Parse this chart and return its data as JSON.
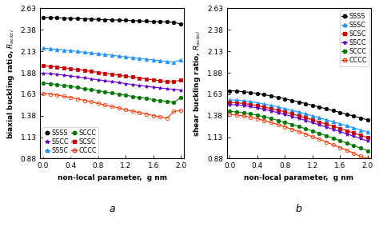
{
  "x": [
    0.0,
    0.1,
    0.2,
    0.3,
    0.4,
    0.5,
    0.6,
    0.7,
    0.8,
    0.9,
    1.0,
    1.1,
    1.2,
    1.3,
    1.4,
    1.5,
    1.6,
    1.7,
    1.8,
    1.9,
    2.0
  ],
  "biaxial": {
    "SSSS": [
      2.525,
      2.523,
      2.52,
      2.517,
      2.514,
      2.511,
      2.508,
      2.505,
      2.502,
      2.499,
      2.496,
      2.493,
      2.49,
      2.487,
      2.484,
      2.481,
      2.478,
      2.475,
      2.472,
      2.469,
      2.446
    ],
    "SSSC": [
      2.165,
      2.16,
      2.153,
      2.145,
      2.137,
      2.128,
      2.119,
      2.11,
      2.101,
      2.092,
      2.083,
      2.074,
      2.065,
      2.056,
      2.047,
      2.038,
      2.029,
      2.02,
      2.011,
      2.002,
      2.03
    ],
    "SCSC": [
      1.96,
      1.955,
      1.947,
      1.938,
      1.928,
      1.917,
      1.906,
      1.895,
      1.884,
      1.873,
      1.862,
      1.851,
      1.84,
      1.829,
      1.819,
      1.808,
      1.798,
      1.788,
      1.778,
      1.778,
      1.793
    ],
    "SSCC": [
      1.875,
      1.87,
      1.862,
      1.852,
      1.842,
      1.831,
      1.82,
      1.809,
      1.798,
      1.787,
      1.776,
      1.765,
      1.754,
      1.743,
      1.733,
      1.722,
      1.712,
      1.703,
      1.694,
      1.686,
      1.678
    ],
    "SCCC": [
      1.76,
      1.753,
      1.744,
      1.733,
      1.721,
      1.709,
      1.696,
      1.683,
      1.67,
      1.657,
      1.644,
      1.631,
      1.618,
      1.605,
      1.593,
      1.58,
      1.568,
      1.556,
      1.545,
      1.535,
      1.59
    ],
    "CCCC": [
      1.64,
      1.632,
      1.621,
      1.607,
      1.592,
      1.576,
      1.559,
      1.541,
      1.523,
      1.505,
      1.487,
      1.469,
      1.451,
      1.433,
      1.416,
      1.399,
      1.382,
      1.366,
      1.35,
      1.43,
      1.44
    ]
  },
  "shear": {
    "SSSS": [
      1.67,
      1.666,
      1.659,
      1.65,
      1.638,
      1.625,
      1.61,
      1.594,
      1.577,
      1.559,
      1.54,
      1.521,
      1.501,
      1.481,
      1.46,
      1.439,
      1.418,
      1.397,
      1.376,
      1.354,
      1.332
    ],
    "SSSC": [
      1.565,
      1.561,
      1.554,
      1.544,
      1.531,
      1.516,
      1.5,
      1.482,
      1.463,
      1.443,
      1.422,
      1.401,
      1.379,
      1.356,
      1.333,
      1.31,
      1.286,
      1.262,
      1.238,
      1.214,
      1.189
    ],
    "SCSC": [
      1.535,
      1.53,
      1.522,
      1.511,
      1.497,
      1.481,
      1.463,
      1.444,
      1.423,
      1.402,
      1.379,
      1.356,
      1.332,
      1.307,
      1.282,
      1.257,
      1.231,
      1.205,
      1.178,
      1.151,
      1.124
    ],
    "SSCC": [
      1.51,
      1.505,
      1.497,
      1.485,
      1.47,
      1.454,
      1.435,
      1.415,
      1.394,
      1.372,
      1.348,
      1.324,
      1.299,
      1.274,
      1.248,
      1.222,
      1.195,
      1.168,
      1.141,
      1.113,
      1.085
    ],
    "SCCC": [
      1.43,
      1.424,
      1.414,
      1.401,
      1.385,
      1.367,
      1.347,
      1.326,
      1.303,
      1.279,
      1.254,
      1.228,
      1.202,
      1.175,
      1.147,
      1.119,
      1.09,
      1.061,
      1.032,
      1.002,
      0.972
    ],
    "CCCC": [
      1.395,
      1.388,
      1.377,
      1.362,
      1.344,
      1.323,
      1.3,
      1.276,
      1.25,
      1.223,
      1.195,
      1.166,
      1.136,
      1.105,
      1.074,
      1.042,
      1.009,
      0.976,
      0.943,
      0.908,
      0.88
    ]
  },
  "biaxial_styles": {
    "SSSS": {
      "color": "#000000",
      "marker": "o",
      "mfc": "#000000",
      "mec": "#000000"
    },
    "SSSC": {
      "color": "#1E90FF",
      "marker": "^",
      "mfc": "#1E90FF",
      "mec": "#1E90FF"
    },
    "SCSC": {
      "color": "#CC0000",
      "marker": "s",
      "mfc": "#CC0000",
      "mec": "#CC0000"
    },
    "SSCC": {
      "color": "#6600CC",
      "marker": "*",
      "mfc": "#6600CC",
      "mec": "#6600CC"
    },
    "SCCC": {
      "color": "#007700",
      "marker": "o",
      "mfc": "#007700",
      "mec": "#007700"
    },
    "CCCC": {
      "color": "#FF3300",
      "marker": "o",
      "mfc": "none",
      "mec": "#FF3300"
    }
  },
  "shear_styles": {
    "SSSS": {
      "color": "#000000",
      "marker": "o",
      "mfc": "#000000",
      "mec": "#000000"
    },
    "SSSC": {
      "color": "#1E90FF",
      "marker": "^",
      "mfc": "#1E90FF",
      "mec": "#1E90FF"
    },
    "SCSC": {
      "color": "#CC0000",
      "marker": "s",
      "mfc": "#CC0000",
      "mec": "#CC0000"
    },
    "SSCC": {
      "color": "#6600CC",
      "marker": "*",
      "mfc": "#6600CC",
      "mec": "#6600CC"
    },
    "SCCC": {
      "color": "#007700",
      "marker": "o",
      "mfc": "#007700",
      "mec": "#007700"
    },
    "CCCC": {
      "color": "#FF3300",
      "marker": "o",
      "mfc": "none",
      "mec": "#FF3300"
    }
  },
  "biaxial_order": [
    "SSSS",
    "SSSC",
    "SCSC",
    "SSCC",
    "SCCC",
    "CCCC"
  ],
  "shear_order": [
    "SSSS",
    "SSSC",
    "SCSC",
    "SSCC",
    "SCCC",
    "CCCC"
  ],
  "yticks": [
    0.88,
    1.13,
    1.38,
    1.63,
    1.88,
    2.13,
    2.38,
    2.63
  ],
  "xticks": [
    0.0,
    0.4,
    0.8,
    1.2,
    1.6,
    2.0
  ],
  "xlim": [
    -0.04,
    2.05
  ],
  "ylim": [
    0.88,
    2.63
  ],
  "xlabel": "non-local parameter,  g nm",
  "ylabel_biaxial": "biaxial buckling ratio, $R_{ackcl}$",
  "ylabel_shear": "shear buckling ratio, $R_{ackcl}$",
  "label_a": "a",
  "label_b": "b",
  "markersize": 3.2,
  "linewidth": 0.8,
  "tick_fontsize": 6.5,
  "label_fontsize": 6.5,
  "legend_fontsize": 5.8,
  "background": "#ffffff"
}
